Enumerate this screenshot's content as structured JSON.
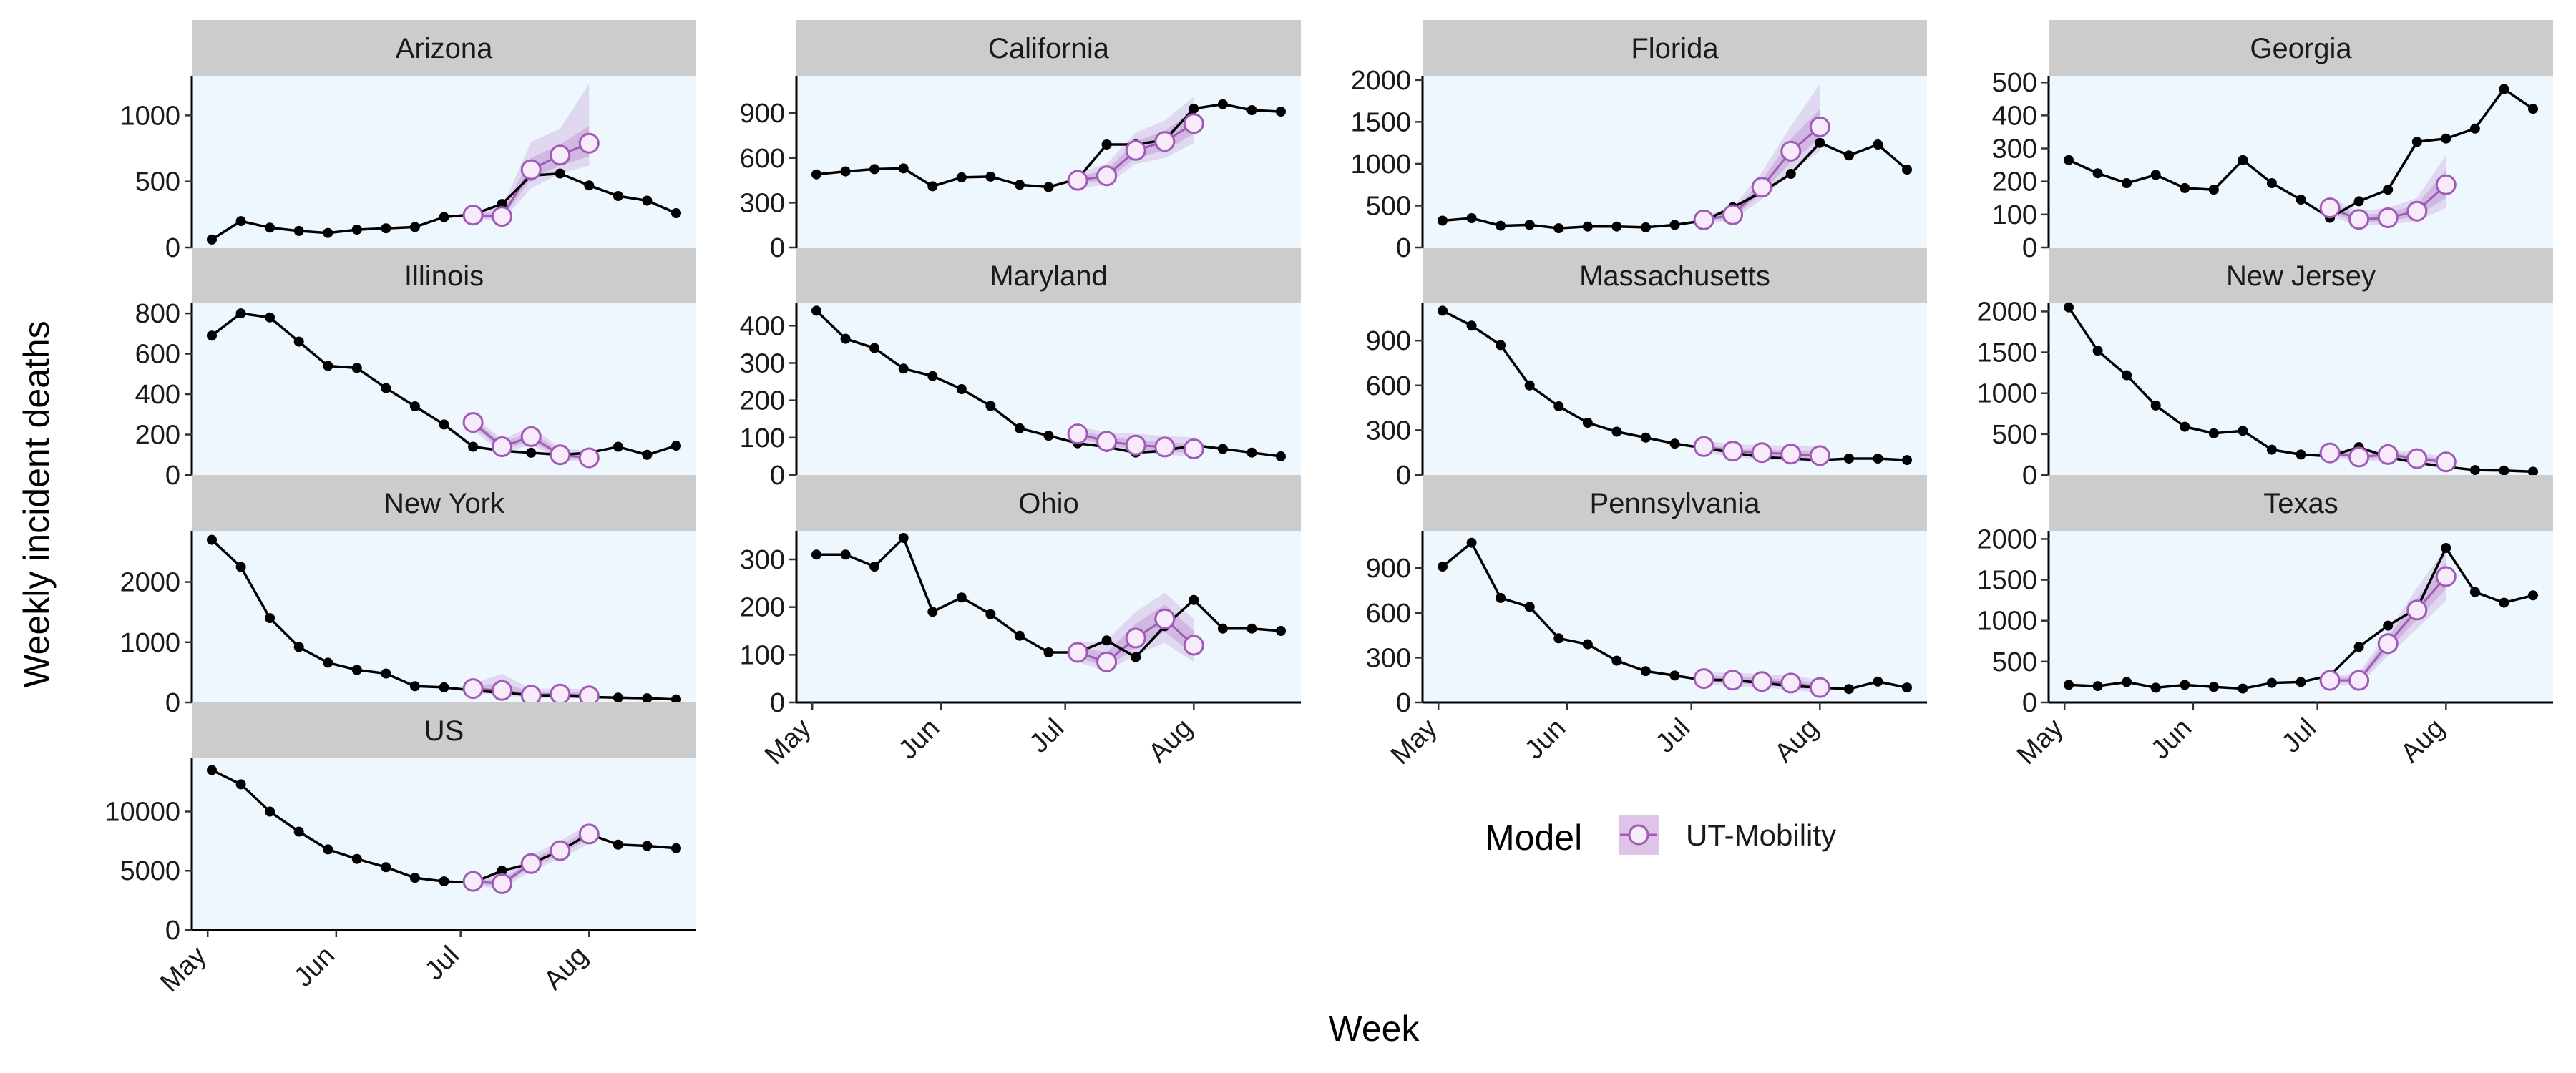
{
  "chart_data": {
    "type": "line",
    "xlabel": "Week",
    "ylabel": "Weekly incident deaths",
    "x_tick_labels": [
      "May",
      "Jun",
      "Jul",
      "Aug"
    ],
    "x_tick_dates": [
      "2020-05-01",
      "2020-06-01",
      "2020-07-01",
      "2020-08-01"
    ],
    "observed_dates": [
      "2020-05-02",
      "2020-05-09",
      "2020-05-16",
      "2020-05-23",
      "2020-05-30",
      "2020-06-06",
      "2020-06-13",
      "2020-06-20",
      "2020-06-27",
      "2020-07-04",
      "2020-07-11",
      "2020-07-18",
      "2020-07-25",
      "2020-08-01",
      "2020-08-08",
      "2020-08-15",
      "2020-08-22"
    ],
    "forecast_dates": [
      "2020-07-04",
      "2020-07-11",
      "2020-07-18",
      "2020-07-25",
      "2020-08-01"
    ],
    "legend": {
      "title": "Model",
      "entries": [
        {
          "label": "UT-Mobility",
          "color": "#b57fc9"
        }
      ]
    },
    "colors": {
      "observed": "#000000",
      "forecast_point_fill": "#f7eafa",
      "forecast_stroke": "#a05cb4",
      "band": "#b57fc9",
      "panel_background": "#eef6fe",
      "strip_background": "#cccccc"
    },
    "panels": [
      {
        "name": "Arizona",
        "ylim": [
          0,
          1300
        ],
        "yticks": [
          0,
          500,
          1000
        ],
        "ytick_labels": [
          "0",
          "500",
          "1000"
        ],
        "observed": [
          60,
          200,
          150,
          125,
          110,
          135,
          145,
          155,
          230,
          250,
          330,
          545,
          560,
          470,
          390,
          355,
          260
        ],
        "forecast": [
          245,
          235,
          590,
          700,
          790
        ],
        "band_lower": [
          215,
          200,
          450,
          560,
          620
        ],
        "band_upper": [
          275,
          300,
          800,
          900,
          1240
        ],
        "band_inner_lower": [
          230,
          215,
          520,
          620,
          690
        ],
        "band_inner_upper": [
          260,
          265,
          680,
          780,
          920
        ]
      },
      {
        "name": "California",
        "ylim": [
          0,
          1150
        ],
        "yticks": [
          0,
          300,
          600,
          900
        ],
        "ytick_labels": [
          "0",
          "300",
          "600",
          "900"
        ],
        "observed": [
          490,
          510,
          525,
          530,
          410,
          470,
          475,
          420,
          405,
          460,
          690,
          690,
          720,
          930,
          960,
          920,
          910
        ],
        "forecast": [
          450,
          480,
          650,
          710,
          830
        ],
        "band_lower": [
          400,
          420,
          560,
          600,
          700
        ],
        "band_upper": [
          500,
          560,
          770,
          850,
          1010
        ],
        "band_inner_lower": [
          425,
          450,
          600,
          650,
          760
        ],
        "band_inner_upper": [
          475,
          520,
          710,
          780,
          920
        ]
      },
      {
        "name": "Florida",
        "ylim": [
          0,
          2050
        ],
        "yticks": [
          0,
          500,
          1000,
          1500,
          2000
        ],
        "ytick_labels": [
          "0",
          "500",
          "1000",
          "1500",
          "2000"
        ],
        "observed": [
          320,
          350,
          260,
          270,
          230,
          250,
          250,
          240,
          270,
          320,
          480,
          660,
          880,
          1250,
          1100,
          1230,
          930
        ],
        "forecast": [
          330,
          390,
          720,
          1150,
          1440
        ],
        "band_lower": [
          290,
          320,
          580,
          900,
          1150
        ],
        "band_upper": [
          380,
          480,
          900,
          1450,
          1950
        ],
        "band_inner_lower": [
          310,
          350,
          650,
          1020,
          1300
        ],
        "band_inner_upper": [
          355,
          430,
          800,
          1300,
          1650
        ]
      },
      {
        "name": "Georgia",
        "ylim": [
          0,
          520
        ],
        "yticks": [
          0,
          100,
          200,
          300,
          400,
          500
        ],
        "ytick_labels": [
          "0",
          "100",
          "200",
          "300",
          "400",
          "500"
        ],
        "observed": [
          265,
          225,
          195,
          220,
          180,
          175,
          265,
          195,
          145,
          90,
          140,
          175,
          320,
          330,
          360,
          480,
          420
        ],
        "forecast": [
          120,
          85,
          90,
          110,
          190
        ],
        "band_lower": [
          95,
          65,
          70,
          80,
          120
        ],
        "band_upper": [
          150,
          110,
          120,
          150,
          280
        ],
        "band_inner_lower": [
          105,
          75,
          80,
          95,
          150
        ],
        "band_inner_upper": [
          135,
          98,
          105,
          130,
          235
        ]
      },
      {
        "name": "Illinois",
        "ylim": [
          0,
          850
        ],
        "yticks": [
          0,
          200,
          400,
          600,
          800
        ],
        "ytick_labels": [
          "0",
          "200",
          "400",
          "600",
          "800"
        ],
        "observed": [
          690,
          800,
          780,
          660,
          540,
          530,
          430,
          340,
          250,
          140,
          120,
          110,
          100,
          110,
          140,
          100,
          145
        ],
        "forecast": [
          260,
          140,
          190,
          100,
          85
        ],
        "band_lower": [
          220,
          110,
          150,
          75,
          60
        ],
        "band_upper": [
          300,
          175,
          240,
          135,
          120
        ],
        "band_inner_lower": [
          240,
          125,
          170,
          88,
          72
        ],
        "band_inner_upper": [
          280,
          158,
          215,
          118,
          100
        ]
      },
      {
        "name": "Maryland",
        "ylim": [
          0,
          460
        ],
        "yticks": [
          0,
          100,
          200,
          300,
          400
        ],
        "ytick_labels": [
          "0",
          "100",
          "200",
          "300",
          "400"
        ],
        "observed": [
          440,
          365,
          340,
          285,
          265,
          230,
          185,
          125,
          105,
          85,
          75,
          60,
          65,
          80,
          70,
          60,
          50
        ],
        "forecast": [
          110,
          90,
          80,
          75,
          70
        ],
        "band_lower": [
          90,
          70,
          58,
          55,
          48
        ],
        "band_upper": [
          130,
          115,
          110,
          105,
          100
        ],
        "band_inner_lower": [
          100,
          80,
          68,
          64,
          58
        ],
        "band_inner_upper": [
          120,
          102,
          94,
          88,
          84
        ]
      },
      {
        "name": "Massachusetts",
        "ylim": [
          0,
          1150
        ],
        "yticks": [
          0,
          300,
          600,
          900
        ],
        "ytick_labels": [
          "0",
          "300",
          "600",
          "900"
        ],
        "observed": [
          1100,
          1000,
          870,
          600,
          460,
          350,
          290,
          250,
          210,
          180,
          150,
          120,
          110,
          100,
          110,
          110,
          100
        ],
        "forecast": [
          190,
          160,
          150,
          140,
          130
        ],
        "band_lower": [
          150,
          120,
          105,
          95,
          85
        ],
        "band_upper": [
          230,
          205,
          200,
          195,
          190
        ],
        "band_inner_lower": [
          170,
          140,
          128,
          118,
          108
        ],
        "band_inner_upper": [
          210,
          182,
          172,
          165,
          158
        ]
      },
      {
        "name": "New Jersey",
        "ylim": [
          0,
          2100
        ],
        "yticks": [
          0,
          500,
          1000,
          1500,
          2000
        ],
        "ytick_labels": [
          "0",
          "500",
          "1000",
          "1500",
          "2000"
        ],
        "observed": [
          2050,
          1520,
          1220,
          850,
          590,
          510,
          540,
          310,
          250,
          230,
          340,
          220,
          150,
          100,
          60,
          55,
          40
        ],
        "forecast": [
          270,
          220,
          250,
          200,
          160
        ],
        "band_lower": [
          220,
          170,
          180,
          140,
          110
        ],
        "band_upper": [
          330,
          280,
          320,
          270,
          230
        ],
        "band_inner_lower": [
          245,
          195,
          215,
          170,
          135
        ],
        "band_inner_upper": [
          300,
          250,
          285,
          235,
          195
        ]
      },
      {
        "name": "New York",
        "ylim": [
          0,
          2850
        ],
        "yticks": [
          0,
          1000,
          2000
        ],
        "ytick_labels": [
          "0",
          "1000",
          "2000"
        ],
        "observed": [
          2700,
          2250,
          1400,
          920,
          660,
          540,
          480,
          270,
          250,
          200,
          160,
          120,
          110,
          90,
          80,
          70,
          50
        ],
        "forecast": [
          230,
          200,
          120,
          140,
          110
        ],
        "band_lower": [
          160,
          120,
          70,
          80,
          60
        ],
        "band_upper": [
          310,
          480,
          220,
          240,
          210
        ],
        "band_inner_lower": [
          190,
          150,
          90,
          105,
          80
        ],
        "band_inner_upper": [
          270,
          330,
          170,
          185,
          160
        ]
      },
      {
        "name": "Ohio",
        "ylim": [
          0,
          360
        ],
        "yticks": [
          0,
          100,
          200,
          300
        ],
        "ytick_labels": [
          "0",
          "100",
          "200",
          "300"
        ],
        "observed": [
          310,
          310,
          285,
          345,
          190,
          220,
          185,
          140,
          105,
          105,
          130,
          95,
          160,
          215,
          155,
          155,
          150
        ],
        "forecast": [
          105,
          85,
          135,
          175,
          120
        ],
        "band_lower": [
          85,
          65,
          100,
          125,
          85
        ],
        "band_upper": [
          125,
          130,
          190,
          230,
          175
        ],
        "band_inner_lower": [
          95,
          74,
          115,
          148,
          100
        ],
        "band_inner_upper": [
          115,
          105,
          165,
          205,
          150
        ]
      },
      {
        "name": "Pennsylvania",
        "ylim": [
          0,
          1150
        ],
        "yticks": [
          0,
          300,
          600,
          900
        ],
        "ytick_labels": [
          "0",
          "300",
          "600",
          "900"
        ],
        "observed": [
          910,
          1070,
          700,
          640,
          430,
          390,
          280,
          210,
          180,
          150,
          150,
          130,
          110,
          100,
          90,
          140,
          100
        ],
        "forecast": [
          160,
          150,
          140,
          130,
          100
        ],
        "band_lower": [
          120,
          110,
          100,
          85,
          65
        ],
        "band_upper": [
          200,
          200,
          190,
          180,
          150
        ],
        "band_inner_lower": [
          140,
          130,
          118,
          105,
          80
        ],
        "band_inner_upper": [
          180,
          175,
          165,
          155,
          125
        ]
      },
      {
        "name": "Texas",
        "ylim": [
          0,
          2100
        ],
        "yticks": [
          0,
          500,
          1000,
          1500,
          2000
        ],
        "ytick_labels": [
          "0",
          "500",
          "1000",
          "1500",
          "2000"
        ],
        "observed": [
          215,
          200,
          250,
          180,
          215,
          190,
          170,
          240,
          250,
          330,
          680,
          940,
          1150,
          1890,
          1350,
          1220,
          1310
        ],
        "forecast": [
          270,
          270,
          720,
          1130,
          1540
        ],
        "band_lower": [
          220,
          210,
          570,
          900,
          1250
        ],
        "band_upper": [
          320,
          360,
          870,
          1400,
          1900
        ],
        "band_inner_lower": [
          245,
          240,
          640,
          1010,
          1390
        ],
        "band_inner_upper": [
          295,
          310,
          800,
          1270,
          1720
        ]
      },
      {
        "name": "US",
        "ylim": [
          0,
          14500
        ],
        "yticks": [
          0,
          5000,
          10000
        ],
        "ytick_labels": [
          "0",
          "5000",
          "10000"
        ],
        "observed": [
          13500,
          12300,
          10000,
          8300,
          6800,
          6000,
          5300,
          4400,
          4100,
          4000,
          5000,
          5600,
          6700,
          8100,
          7200,
          7100,
          6900
        ],
        "forecast": [
          4100,
          3900,
          5600,
          6700,
          8100
        ],
        "band_lower": [
          3700,
          3500,
          5000,
          6000,
          7300
        ],
        "band_upper": [
          4500,
          4500,
          6300,
          7500,
          9000
        ],
        "band_inner_lower": [
          3900,
          3700,
          5300,
          6350,
          7700
        ],
        "band_inner_upper": [
          4300,
          4200,
          5950,
          7100,
          8550
        ]
      }
    ]
  }
}
